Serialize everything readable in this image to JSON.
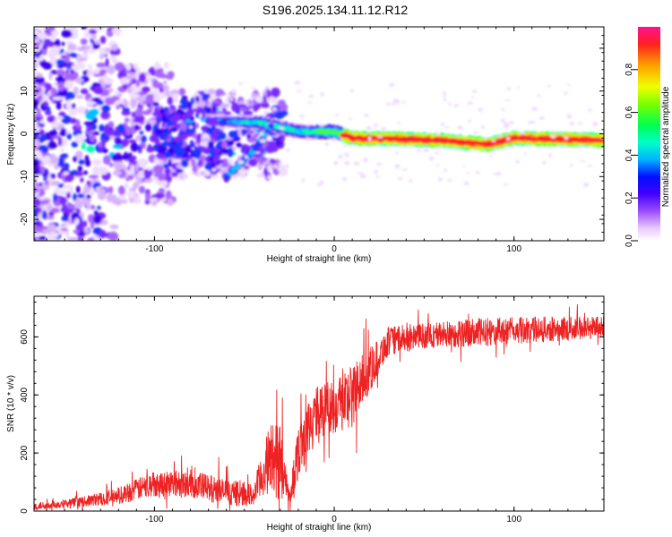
{
  "title": "S196.2025.134.11.12.R12",
  "chart_data": [
    {
      "type": "heatmap",
      "name": "spectrogram",
      "xlabel": "Height of straight line (km)",
      "ylabel": "Frequency (Hz)",
      "xlim": [
        -167,
        150
      ],
      "ylim": [
        -25,
        25
      ],
      "xticks": [
        -100,
        0,
        100
      ],
      "yticks": [
        -20,
        -10,
        0,
        10,
        20
      ],
      "colorbar": {
        "label": "Normalized spectral amplitude",
        "range": [
          0,
          1
        ],
        "ticks": [
          "0.0",
          "0.2",
          "0.4",
          "0.6",
          "0.8"
        ]
      },
      "ridge": {
        "description_points": [
          {
            "x": -70,
            "y": 3
          },
          {
            "x": -40,
            "y": 2.5
          },
          {
            "x": -20,
            "y": 0.5
          },
          {
            "x": 0,
            "y": 0.5
          },
          {
            "x": 10,
            "y": -1
          },
          {
            "x": 60,
            "y": -1.5
          },
          {
            "x": 85,
            "y": -2.5
          },
          {
            "x": 100,
            "y": -1
          },
          {
            "x": 150,
            "y": -1.5
          }
        ],
        "branch": [
          {
            "x": -60,
            "y": -10
          },
          {
            "x": -45,
            "y": -4
          },
          {
            "x": -35,
            "y": 2
          }
        ]
      }
    },
    {
      "type": "line",
      "name": "snr",
      "xlabel": "Height of straight line (km)",
      "ylabel": "SNR (10 * v/v)",
      "xlim": [
        -167,
        150
      ],
      "ylim": [
        0,
        740
      ],
      "xticks": [
        -100,
        0,
        100
      ],
      "yticks": [
        0,
        200,
        400,
        600
      ],
      "envelope": [
        {
          "x": -167,
          "base": 15,
          "amp": 25
        },
        {
          "x": -140,
          "base": 30,
          "amp": 35
        },
        {
          "x": -120,
          "base": 50,
          "amp": 60
        },
        {
          "x": -100,
          "base": 90,
          "amp": 90
        },
        {
          "x": -80,
          "base": 90,
          "amp": 100
        },
        {
          "x": -60,
          "base": 60,
          "amp": 90
        },
        {
          "x": -45,
          "base": 50,
          "amp": 80
        },
        {
          "x": -35,
          "base": 180,
          "amp": 250
        },
        {
          "x": -30,
          "base": 150,
          "amp": 300
        },
        {
          "x": -25,
          "base": 40,
          "amp": 60
        },
        {
          "x": -20,
          "base": 200,
          "amp": 200
        },
        {
          "x": -10,
          "base": 330,
          "amp": 180
        },
        {
          "x": 0,
          "base": 350,
          "amp": 200
        },
        {
          "x": 10,
          "base": 390,
          "amp": 220
        },
        {
          "x": 20,
          "base": 480,
          "amp": 150
        },
        {
          "x": 30,
          "base": 580,
          "amp": 100
        },
        {
          "x": 50,
          "base": 600,
          "amp": 90
        },
        {
          "x": 80,
          "base": 610,
          "amp": 100
        },
        {
          "x": 110,
          "base": 620,
          "amp": 90
        },
        {
          "x": 150,
          "base": 630,
          "amp": 80
        }
      ]
    }
  ]
}
